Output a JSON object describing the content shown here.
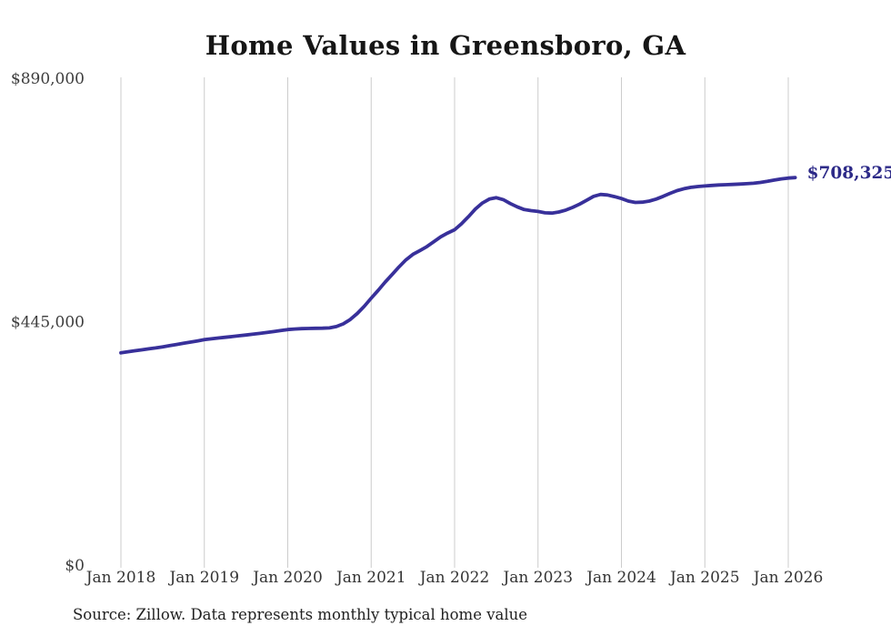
{
  "title": "Home Values in Greensboro, GA",
  "source_note": "Source: Zillow. Data represents monthly typical home value",
  "colors": {
    "background": "#ffffff",
    "title_text": "#161616",
    "tick_text": "#3d3d3d",
    "source_text": "#212121",
    "gridline": "#cccccc",
    "line": "#38309a",
    "end_label": "#2d2a88"
  },
  "chart_data": {
    "type": "line",
    "title": "Home Values in Greensboro, GA",
    "series_name": "Monthly typical home value",
    "x_start": "2018-01",
    "x_end": "2026-02",
    "x_cadence": "monthly",
    "ylim": [
      0,
      890000
    ],
    "grid": "vertical-only",
    "legend": "none",
    "line_color": "#38309a",
    "end_label": "$708,325",
    "end_value": 708325,
    "yticks": [
      {
        "value": 0,
        "label": "$0"
      },
      {
        "value": 445000,
        "label": "$445,000"
      },
      {
        "value": 890000,
        "label": "$890,000"
      }
    ],
    "xticks": [
      "Jan 2018",
      "Jan 2019",
      "Jan 2020",
      "Jan 2021",
      "Jan 2022",
      "Jan 2023",
      "Jan 2024",
      "Jan 2025",
      "Jan 2026"
    ],
    "values": [
      388000,
      390000,
      391800,
      393500,
      395200,
      397000,
      399000,
      401000,
      403200,
      405400,
      407600,
      409800,
      412000,
      413500,
      415000,
      416400,
      417800,
      419200,
      420600,
      422000,
      423600,
      425200,
      426900,
      428700,
      430500,
      431500,
      432200,
      432600,
      432800,
      433000,
      433500,
      436000,
      441000,
      449000,
      460000,
      473000,
      488000,
      502000,
      517000,
      531000,
      545000,
      558000,
      568000,
      575000,
      582000,
      591000,
      600000,
      607000,
      613000,
      624000,
      637000,
      651000,
      662000,
      669000,
      671500,
      668000,
      661000,
      655000,
      650000,
      648000,
      646500,
      644000,
      643500,
      645500,
      649000,
      654000,
      660000,
      667000,
      674000,
      677500,
      676500,
      673500,
      670000,
      665500,
      663000,
      663500,
      665500,
      669000,
      674000,
      679500,
      684500,
      688000,
      690500,
      692000,
      693000,
      694000,
      694800,
      695400,
      695900,
      696500,
      697200,
      698000,
      699500,
      701500,
      703800,
      706000,
      707500,
      708325
    ]
  }
}
